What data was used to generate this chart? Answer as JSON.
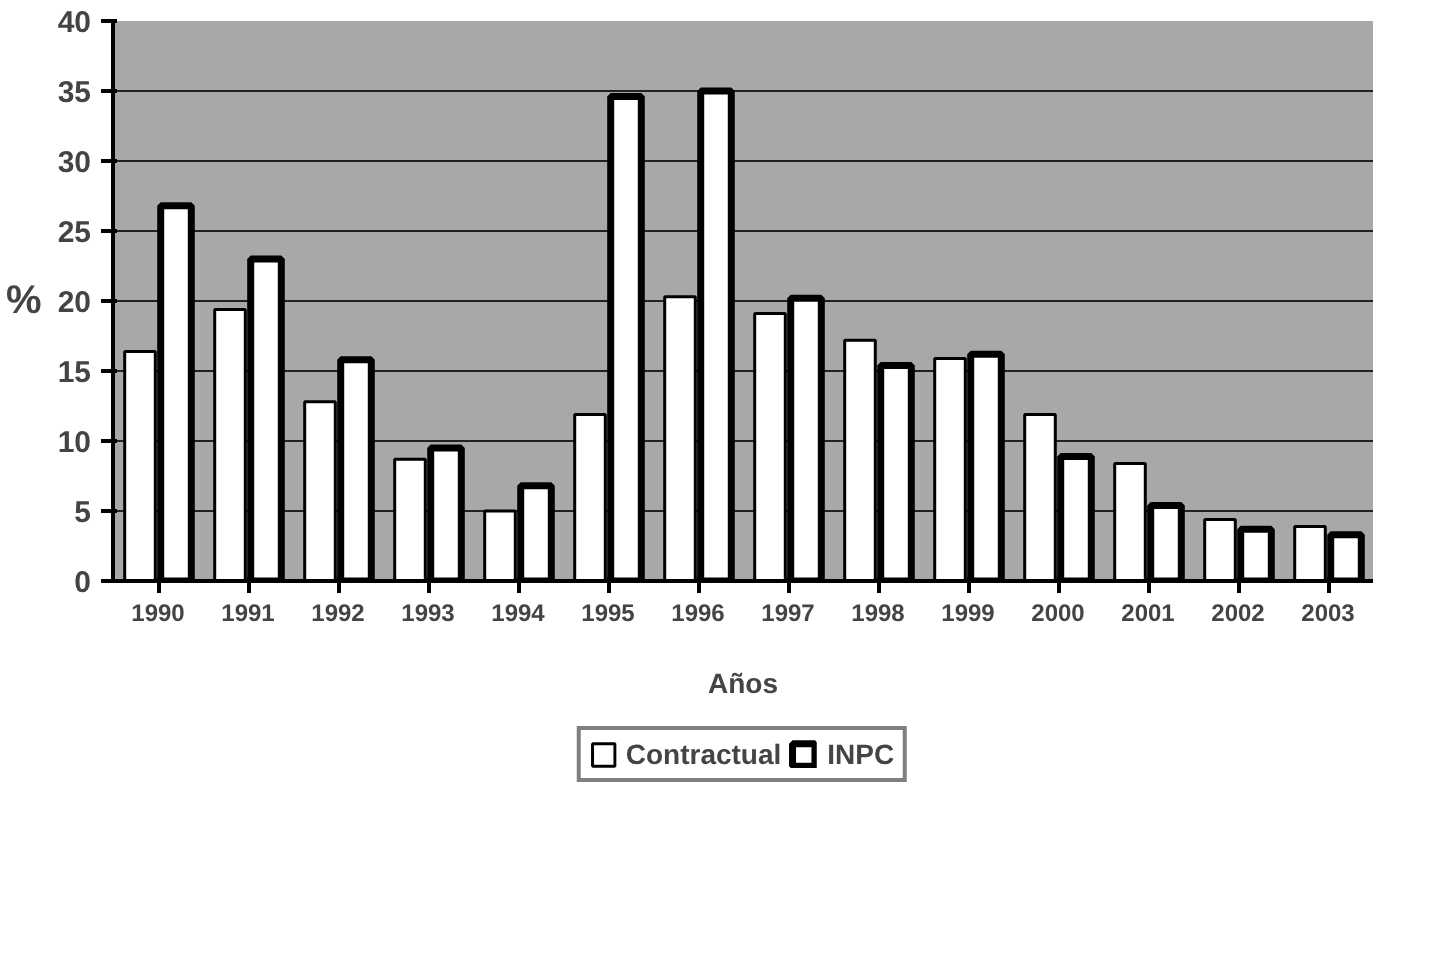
{
  "chart_data": {
    "type": "bar",
    "xlabel": "Años",
    "ylabel": "%",
    "categories": [
      "1990",
      "1991",
      "1992",
      "1993",
      "1994",
      "1995",
      "1996",
      "1997",
      "1998",
      "1999",
      "2000",
      "2001",
      "2002",
      "2003"
    ],
    "series": [
      {
        "name": "Contractual",
        "color": "#ffffff",
        "values": [
          16.4,
          19.4,
          12.8,
          8.7,
          5.0,
          11.9,
          20.3,
          19.1,
          17.2,
          15.9,
          11.9,
          8.4,
          4.4,
          3.9
        ]
      },
      {
        "name": "INPC",
        "color": "#ffffff",
        "values": [
          26.8,
          23.0,
          15.8,
          9.5,
          6.8,
          34.6,
          35.0,
          20.2,
          15.4,
          16.2,
          8.9,
          5.4,
          3.7,
          3.3
        ]
      }
    ],
    "ylim": [
      0,
      40
    ],
    "yticks": [
      0,
      5,
      10,
      15,
      20,
      25,
      30,
      35,
      40
    ],
    "grid": "y",
    "legend": "bottom"
  }
}
